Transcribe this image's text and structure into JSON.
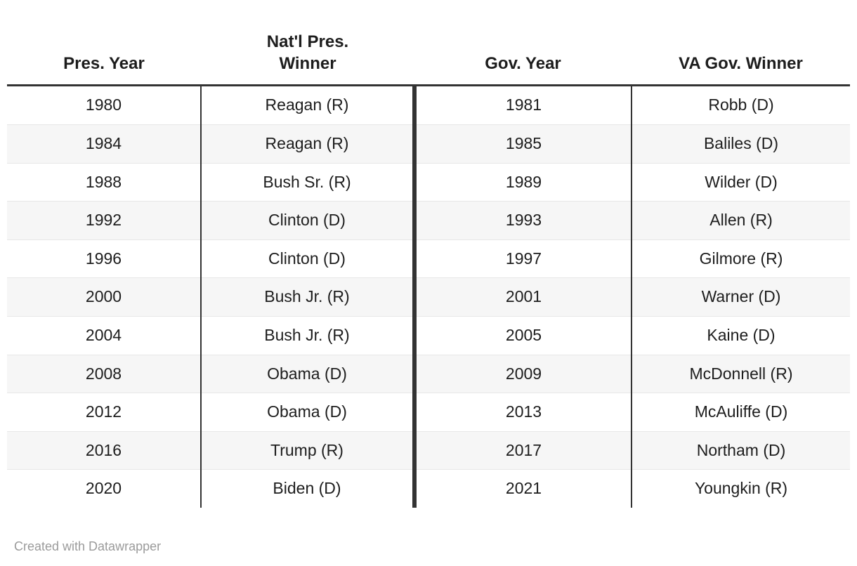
{
  "chart_data": {
    "type": "table",
    "columns": [
      "Pres. Year",
      "Nat'l Pres.\nWinner",
      "Gov. Year",
      "VA Gov. Winner"
    ],
    "rows": [
      [
        "1980",
        "Reagan (R)",
        "1981",
        "Robb (D)"
      ],
      [
        "1984",
        "Reagan (R)",
        "1985",
        "Baliles (D)"
      ],
      [
        "1988",
        "Bush Sr. (R)",
        "1989",
        "Wilder (D)"
      ],
      [
        "1992",
        "Clinton (D)",
        "1993",
        "Allen (R)"
      ],
      [
        "1996",
        "Clinton (D)",
        "1997",
        "Gilmore (R)"
      ],
      [
        "2000",
        "Bush Jr. (R)",
        "2001",
        "Warner (D)"
      ],
      [
        "2004",
        "Bush Jr. (R)",
        "2005",
        "Kaine (D)"
      ],
      [
        "2008",
        "Obama (D)",
        "2009",
        "McDonnell (R)"
      ],
      [
        "2012",
        "Obama (D)",
        "2013",
        "McAuliffe (D)"
      ],
      [
        "2016",
        "Trump (R)",
        "2017",
        "Northam (D)"
      ],
      [
        "2020",
        "Biden (D)",
        "2021",
        "Youngkin (R)"
      ]
    ],
    "layout": {
      "striped_rows": true,
      "stripe_color": "#f6f6f6",
      "header_rule_color": "#333333",
      "divider_color": "#333333",
      "row_border_color": "#e7e7e7",
      "text_color": "#1d1d1d"
    }
  },
  "footer": {
    "credit": "Created with Datawrapper",
    "credit_color": "#9b9b9b"
  }
}
